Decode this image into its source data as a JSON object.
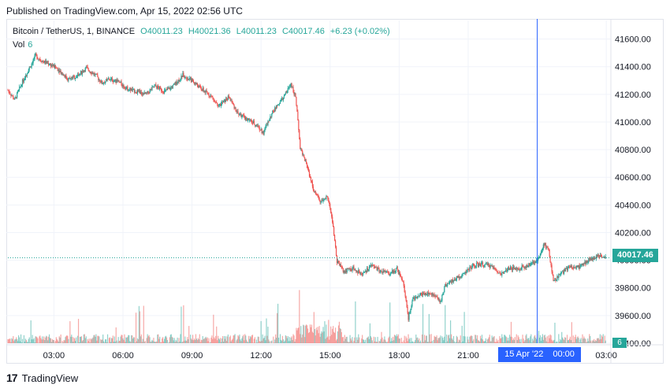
{
  "header": {
    "published": "Published on TradingView.com, Apr 15, 2022 02:56 UTC"
  },
  "legend": {
    "symbol": "Bitcoin / TetherUS, 1, BINANCE",
    "open": "O40011.23",
    "high": "H40021.36",
    "low": "L40011.23",
    "close": "C40017.46",
    "change": "+6.23 (+0.02%)",
    "vol_label": "Vol",
    "vol_value": "6"
  },
  "price_tag": "40017.46",
  "vol_tag": "6",
  "time_tag": {
    "date": "15 Apr '22",
    "time": "00:00"
  },
  "footer": {
    "brand": "TradingView",
    "logo_text": "17"
  },
  "colors": {
    "up": "#26a69a",
    "down": "#ef5350",
    "crosshair": "#2962ff",
    "grid": "#f0f3fa"
  },
  "chart_data": {
    "type": "candlestick",
    "ylim": [
      39400,
      41700
    ],
    "y_ticks": [
      "41600.00",
      "41400.00",
      "41200.00",
      "41000.00",
      "40800.00",
      "40600.00",
      "40400.00",
      "40200.00",
      "40000.00",
      "39800.00",
      "39600.00",
      "39400.00"
    ],
    "x_ticks": [
      "03:00",
      "06:00",
      "09:00",
      "12:00",
      "15:00",
      "18:00",
      "21:00",
      "03:00"
    ],
    "x_tick_hours": [
      3,
      6,
      9,
      12,
      15,
      18,
      21,
      27
    ],
    "x_range_hours": [
      1.0,
      27.2
    ],
    "crosshair_hour": 24,
    "last_price": 40017.46,
    "price_path": [
      [
        1.0,
        41230
      ],
      [
        1.3,
        41160
      ],
      [
        1.6,
        41280
      ],
      [
        1.9,
        41380
      ],
      [
        2.2,
        41480
      ],
      [
        2.5,
        41440
      ],
      [
        2.8,
        41420
      ],
      [
        3.2,
        41380
      ],
      [
        3.6,
        41310
      ],
      [
        4.0,
        41330
      ],
      [
        4.4,
        41390
      ],
      [
        4.8,
        41340
      ],
      [
        5.1,
        41280
      ],
      [
        5.4,
        41310
      ],
      [
        5.8,
        41290
      ],
      [
        6.2,
        41240
      ],
      [
        6.6,
        41220
      ],
      [
        7.0,
        41200
      ],
      [
        7.4,
        41260
      ],
      [
        7.8,
        41220
      ],
      [
        8.2,
        41260
      ],
      [
        8.6,
        41340
      ],
      [
        9.0,
        41300
      ],
      [
        9.4,
        41240
      ],
      [
        9.8,
        41190
      ],
      [
        10.2,
        41120
      ],
      [
        10.6,
        41180
      ],
      [
        11.0,
        41060
      ],
      [
        11.4,
        41020
      ],
      [
        11.8,
        40980
      ],
      [
        12.1,
        40920
      ],
      [
        12.4,
        41040
      ],
      [
        12.7,
        41120
      ],
      [
        13.0,
        41180
      ],
      [
        13.3,
        41280
      ],
      [
        13.5,
        41180
      ],
      [
        13.7,
        40820
      ],
      [
        14.0,
        40680
      ],
      [
        14.3,
        40500
      ],
      [
        14.6,
        40420
      ],
      [
        14.9,
        40460
      ],
      [
        15.1,
        40280
      ],
      [
        15.3,
        39990
      ],
      [
        15.6,
        39920
      ],
      [
        16.0,
        39940
      ],
      [
        16.4,
        39900
      ],
      [
        16.8,
        39960
      ],
      [
        17.2,
        39920
      ],
      [
        17.6,
        39900
      ],
      [
        17.9,
        39940
      ],
      [
        18.2,
        39820
      ],
      [
        18.4,
        39580
      ],
      [
        18.6,
        39720
      ],
      [
        19.0,
        39760
      ],
      [
        19.4,
        39760
      ],
      [
        19.8,
        39700
      ],
      [
        20.0,
        39820
      ],
      [
        20.4,
        39860
      ],
      [
        20.8,
        39900
      ],
      [
        21.2,
        39960
      ],
      [
        21.6,
        39970
      ],
      [
        22.0,
        39960
      ],
      [
        22.4,
        39900
      ],
      [
        22.8,
        39940
      ],
      [
        23.2,
        39940
      ],
      [
        23.6,
        39960
      ],
      [
        24.0,
        40000
      ],
      [
        24.3,
        40120
      ],
      [
        24.5,
        40070
      ],
      [
        24.7,
        39850
      ],
      [
        25.0,
        39900
      ],
      [
        25.4,
        39950
      ],
      [
        25.8,
        39950
      ],
      [
        26.2,
        40000
      ],
      [
        26.6,
        40030
      ],
      [
        27.0,
        40017
      ]
    ],
    "volume_ylim": [
      0,
      120
    ]
  }
}
